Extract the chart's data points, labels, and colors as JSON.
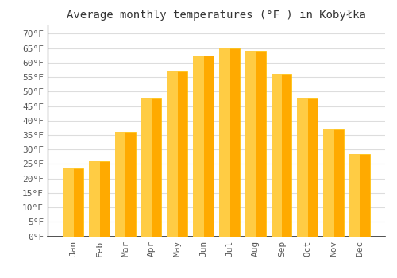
{
  "title": "Average monthly temperatures (°F ) in Kobyłka",
  "months": [
    "Jan",
    "Feb",
    "Mar",
    "Apr",
    "May",
    "Jun",
    "Jul",
    "Aug",
    "Sep",
    "Oct",
    "Nov",
    "Dec"
  ],
  "values": [
    23.5,
    26,
    36,
    47.5,
    57,
    62.5,
    65,
    64,
    56,
    47.5,
    37,
    28.5
  ],
  "bar_color": "#FFAA00",
  "bar_edge_color": "#FFC000",
  "background_color": "#FFFFFF",
  "grid_color": "#DDDDDD",
  "ylabel_ticks": [
    "0°F",
    "5°F",
    "10°F",
    "15°F",
    "20°F",
    "25°F",
    "30°F",
    "35°F",
    "40°F",
    "45°F",
    "50°F",
    "55°F",
    "60°F",
    "65°F",
    "70°F"
  ],
  "ytick_vals": [
    0,
    5,
    10,
    15,
    20,
    25,
    30,
    35,
    40,
    45,
    50,
    55,
    60,
    65,
    70
  ],
  "ylim": [
    0,
    73
  ],
  "title_fontsize": 10,
  "tick_fontsize": 8,
  "tick_color": "#555555"
}
